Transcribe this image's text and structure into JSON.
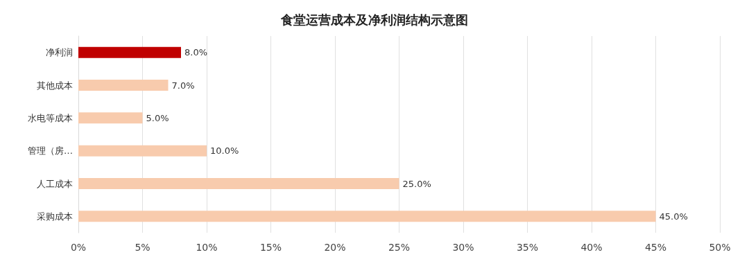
{
  "chart_data": {
    "type": "bar",
    "title": "食堂运营成本及净利润结构示意图",
    "orientation": "horizontal",
    "categories": [
      "净利润",
      "其他成本",
      "水电等成本",
      "管理（房…",
      "人工成本",
      "采购成本"
    ],
    "values": [
      8,
      7,
      5,
      10,
      25,
      45
    ],
    "colors": [
      "#c00000",
      "#f8cbad",
      "#f8cbad",
      "#f8cbad",
      "#f8cbad",
      "#f8cbad"
    ],
    "value_labels": [
      "8.0%",
      "7.0%",
      "5.0%",
      "10.0%",
      "25.0%",
      "45.0%"
    ],
    "xlim": [
      0,
      50
    ],
    "xticks": [
      {
        "value": 0,
        "label": "0%"
      },
      {
        "value": 5,
        "label": "5%"
      },
      {
        "value": 10,
        "label": "10%"
      },
      {
        "value": 15,
        "label": "15%"
      },
      {
        "value": 20,
        "label": "20%"
      },
      {
        "value": 25,
        "label": "25%"
      },
      {
        "value": 30,
        "label": "30%"
      },
      {
        "value": 35,
        "label": "35%"
      },
      {
        "value": 40,
        "label": "40%"
      },
      {
        "value": 45,
        "label": "45%"
      },
      {
        "value": 50,
        "label": "50%"
      }
    ],
    "grid": "x"
  }
}
